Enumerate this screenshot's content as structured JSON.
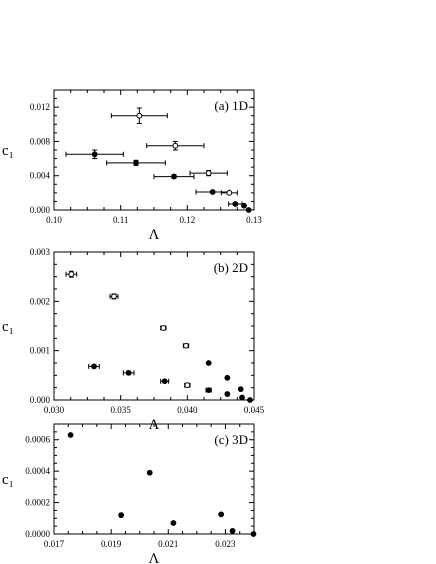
{
  "chart_data": [
    {
      "type": "scatter",
      "panel_label": "(a) 1D",
      "xlabel": "Λ",
      "ylabel": "c₁",
      "xlim": [
        0.1,
        0.13
      ],
      "ylim": [
        0.0,
        0.014
      ],
      "xticks": [
        "0.10",
        "0.11",
        "0.12",
        "0.13"
      ],
      "xtick_values": [
        0.1,
        0.11,
        0.12,
        0.13
      ],
      "yticks": [
        "0.000",
        "0.004",
        "0.008",
        "0.012"
      ],
      "ytick_values": [
        0.0,
        0.004,
        0.008,
        0.012
      ],
      "series": [
        {
          "marker": "filled-circle",
          "points": [
            {
              "x": 0.1061,
              "y": 0.0065,
              "xerr": 0.0043,
              "yerr": 0.0005
            },
            {
              "x": 0.1123,
              "y": 0.0055,
              "xerr": 0.0044,
              "yerr": 0.0003
            },
            {
              "x": 0.118,
              "y": 0.0039,
              "xerr": 0.003,
              "yerr": 0.0002
            },
            {
              "x": 0.1238,
              "y": 0.0021,
              "xerr": 0.0025,
              "yerr": 0.0001
            },
            {
              "x": 0.1272,
              "y": 0.0007,
              "xerr": 0.001,
              "yerr": 0.0001
            },
            {
              "x": 0.1285,
              "y": 0.0005,
              "xerr": 0.0,
              "yerr": 0.0
            },
            {
              "x": 0.1292,
              "y": 0.0,
              "xerr": 0.0,
              "yerr": 0.0
            }
          ]
        },
        {
          "marker": "open-circle",
          "points": [
            {
              "x": 0.1128,
              "y": 0.011,
              "xerr": 0.0042,
              "yerr": 0.0009
            },
            {
              "x": 0.1182,
              "y": 0.0075,
              "xerr": 0.0043,
              "yerr": 0.0005
            },
            {
              "x": 0.1232,
              "y": 0.0043,
              "xerr": 0.0028,
              "yerr": 0.0003
            },
            {
              "x": 0.1263,
              "y": 0.002,
              "xerr": 0.0012,
              "yerr": 0.0001
            }
          ]
        }
      ]
    },
    {
      "type": "scatter",
      "panel_label": "(b) 2D",
      "xlabel": "Λ",
      "ylabel": "c₁",
      "xlim": [
        0.03,
        0.045
      ],
      "ylim": [
        0.0,
        0.003
      ],
      "xticks": [
        "0.030",
        "0.035",
        "0.040",
        "0.045"
      ],
      "xtick_values": [
        0.03,
        0.035,
        0.04,
        0.045
      ],
      "yticks": [
        "0.000",
        "0.001",
        "0.002",
        "0.003"
      ],
      "ytick_values": [
        0.0,
        0.001,
        0.002,
        0.003
      ],
      "series": [
        {
          "marker": "filled-circle",
          "points": [
            {
              "x": 0.033,
              "y": 0.00068,
              "xerr": 0.0004,
              "yerr": 3e-05
            },
            {
              "x": 0.0356,
              "y": 0.00055,
              "xerr": 0.0004,
              "yerr": 3e-05
            },
            {
              "x": 0.0383,
              "y": 0.00038,
              "xerr": 0.0003,
              "yerr": 2e-05
            },
            {
              "x": 0.0416,
              "y": 0.0002,
              "xerr": 0.0002,
              "yerr": 1e-05
            },
            {
              "x": 0.043,
              "y": 0.00012,
              "xerr": 0.0,
              "yerr": 0.0
            },
            {
              "x": 0.0441,
              "y": 5e-05,
              "xerr": 0.0,
              "yerr": 0.0
            },
            {
              "x": 0.0447,
              "y": 0.0,
              "xerr": 0.0,
              "yerr": 0.0
            }
          ]
        },
        {
          "marker": "open-circle",
          "points": [
            {
              "x": 0.0313,
              "y": 0.00255,
              "xerr": 0.0004,
              "yerr": 6e-05
            },
            {
              "x": 0.0345,
              "y": 0.0021,
              "xerr": 0.0003,
              "yerr": 5e-05
            },
            {
              "x": 0.0382,
              "y": 0.00146,
              "xerr": 0.0002,
              "yerr": 3e-05
            },
            {
              "x": 0.0399,
              "y": 0.0011,
              "xerr": 0.0002,
              "yerr": 2e-05
            },
            {
              "x": 0.04,
              "y": 0.0003,
              "xerr": 0.0002,
              "yerr": 1e-05
            }
          ]
        },
        {
          "marker": "filled-circle",
          "points": [
            {
              "x": 0.0416,
              "y": 0.00075,
              "xerr": 0.0,
              "yerr": 0.0
            },
            {
              "x": 0.043,
              "y": 0.00045,
              "xerr": 0.0,
              "yerr": 0.0
            },
            {
              "x": 0.044,
              "y": 0.00022,
              "xerr": 0.0,
              "yerr": 0.0
            }
          ]
        }
      ]
    },
    {
      "type": "scatter",
      "panel_label": "(c) 3D",
      "xlabel": "Λ",
      "ylabel": "c₁",
      "xlim": [
        0.017,
        0.024
      ],
      "ylim": [
        0.0,
        0.0007
      ],
      "xticks": [
        "0.017",
        "0.019",
        "0.021",
        "0.023"
      ],
      "xtick_values": [
        0.017,
        0.019,
        0.021,
        0.023
      ],
      "yticks": [
        "0.0000",
        "0.0002",
        "0.0004",
        "0.0006"
      ],
      "ytick_values": [
        0.0,
        0.0002,
        0.0004,
        0.0006
      ],
      "series": [
        {
          "marker": "filled-circle",
          "points": [
            {
              "x": 0.01758,
              "y": 0.00063,
              "xerr": 0.0,
              "yerr": 0.0
            },
            {
              "x": 0.01935,
              "y": 0.00012,
              "xerr": 5e-05,
              "yerr": 0.0
            },
            {
              "x": 0.02035,
              "y": 0.00039,
              "xerr": 0.0,
              "yerr": 0.0
            },
            {
              "x": 0.02118,
              "y": 7e-05,
              "xerr": 0.0,
              "yerr": 0.0
            },
            {
              "x": 0.02285,
              "y": 0.000125,
              "xerr": 0.0,
              "yerr": 0.0
            },
            {
              "x": 0.02325,
              "y": 2e-05,
              "xerr": 0.0,
              "yerr": 0.0
            },
            {
              "x": 0.02398,
              "y": 0.0,
              "xerr": 0.0,
              "yerr": 0.0
            }
          ]
        }
      ]
    }
  ]
}
